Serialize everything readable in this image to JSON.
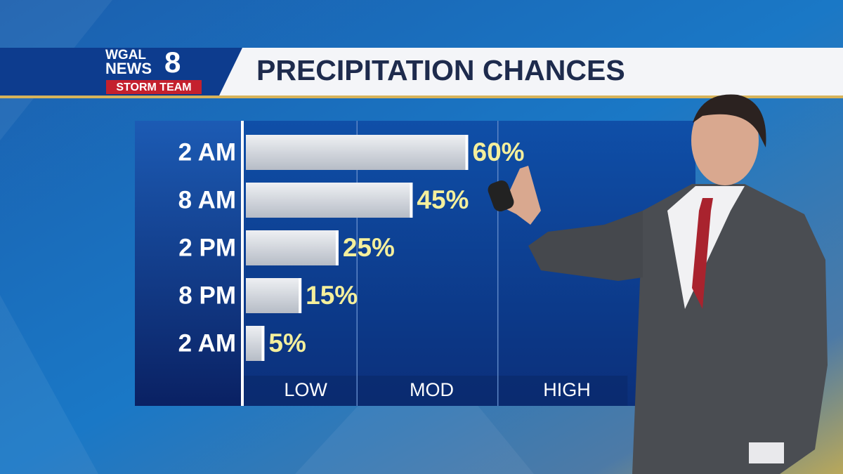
{
  "logo": {
    "line1": "WGAL",
    "line2": "NEWS",
    "number": "8",
    "team": "STORM TEAM"
  },
  "chart_data": {
    "type": "bar",
    "orientation": "horizontal",
    "title": "PRECIPITATION CHANCES",
    "categories": [
      "2 AM",
      "8 AM",
      "2 PM",
      "8 PM",
      "2 AM"
    ],
    "values": [
      60,
      45,
      25,
      15,
      5
    ],
    "value_labels": [
      "60%",
      "45%",
      "25%",
      "15%",
      "5%"
    ],
    "color": "#c9ced6",
    "label_color": "#f4ef9c",
    "xlim": [
      0,
      120
    ],
    "bands": [
      {
        "label": "LOW",
        "start": 0,
        "end": 30
      },
      {
        "label": "MOD",
        "start": 30,
        "end": 68
      },
      {
        "label": "HIGH",
        "start": 68,
        "end": 103
      }
    ]
  }
}
